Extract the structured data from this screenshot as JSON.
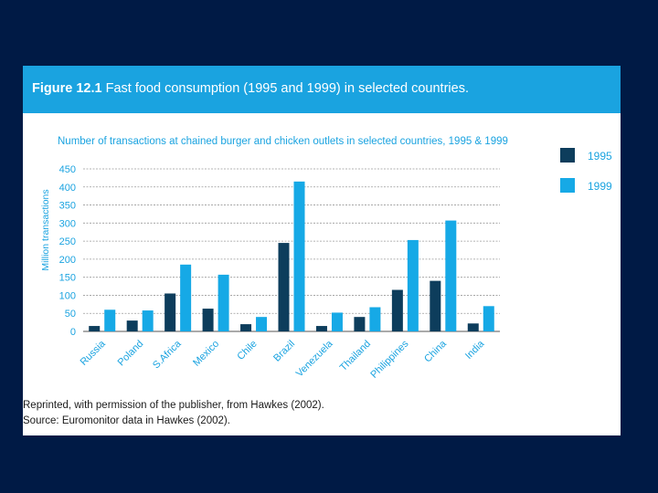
{
  "figure": {
    "label": "Figure 12.1",
    "title": " Fast food consumption (1995 and 1999) in selected countries."
  },
  "credits": {
    "reprinted": "Reprinted, with permission of the publisher, from Hawkes (2002).",
    "source": "Source: Euromonitor data in Hawkes (2002)."
  },
  "colors": {
    "background": "#001a45",
    "banner": "#1aa3e0",
    "series_1995": "#0d3d5c",
    "series_1999": "#16a9e6"
  },
  "chart_data": {
    "type": "bar",
    "title": "Number of transactions at chained burger and chicken outlets in selected countries, 1995 & 1999",
    "xlabel": "",
    "ylabel": "Million transactions",
    "ylim": [
      0,
      450
    ],
    "yticks": [
      0,
      50,
      100,
      150,
      200,
      250,
      300,
      350,
      400,
      450
    ],
    "grid": true,
    "legend_position": "right",
    "categories": [
      "Russia",
      "Poland",
      "S.Africa",
      "Mexico",
      "Chile",
      "Brazil",
      "Venezuela",
      "Thailand",
      "Philippines",
      "China",
      "India"
    ],
    "series": [
      {
        "name": "1995",
        "values": [
          15,
          30,
          105,
          63,
          20,
          245,
          15,
          40,
          115,
          140,
          22
        ]
      },
      {
        "name": "1999",
        "values": [
          60,
          58,
          185,
          157,
          40,
          415,
          52,
          67,
          253,
          307,
          70
        ]
      }
    ]
  }
}
